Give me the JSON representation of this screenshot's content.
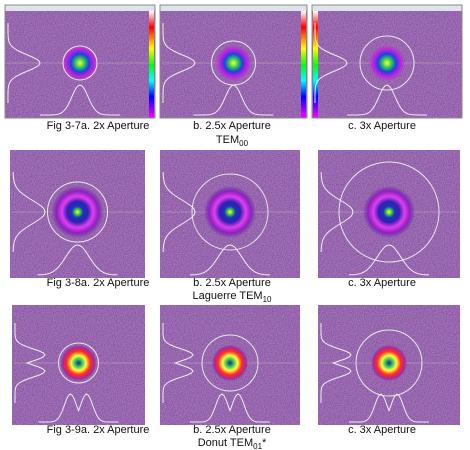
{
  "rows": [
    {
      "captions": [
        "Fig 3-7a. 2x Aperture",
        "b. 2.5x Aperture",
        "c. 3x Aperture"
      ],
      "mode": {
        "text": "TEM",
        "sub": "00"
      }
    },
    {
      "captions": [
        "Fig 3-8a. 2x Aperture",
        "b. 2.5x Aperture",
        "c. 3x Aperture"
      ],
      "mode": {
        "text": "Laguerre TEM",
        "sub": "10"
      }
    },
    {
      "captions": [
        "Fig 3-9a. 2x Aperture",
        "b. 2.5x Aperture",
        "c. 3x Aperture"
      ],
      "mode": {
        "text": "Donut TEM",
        "sub": "01",
        "suffix": "*"
      }
    }
  ]
}
